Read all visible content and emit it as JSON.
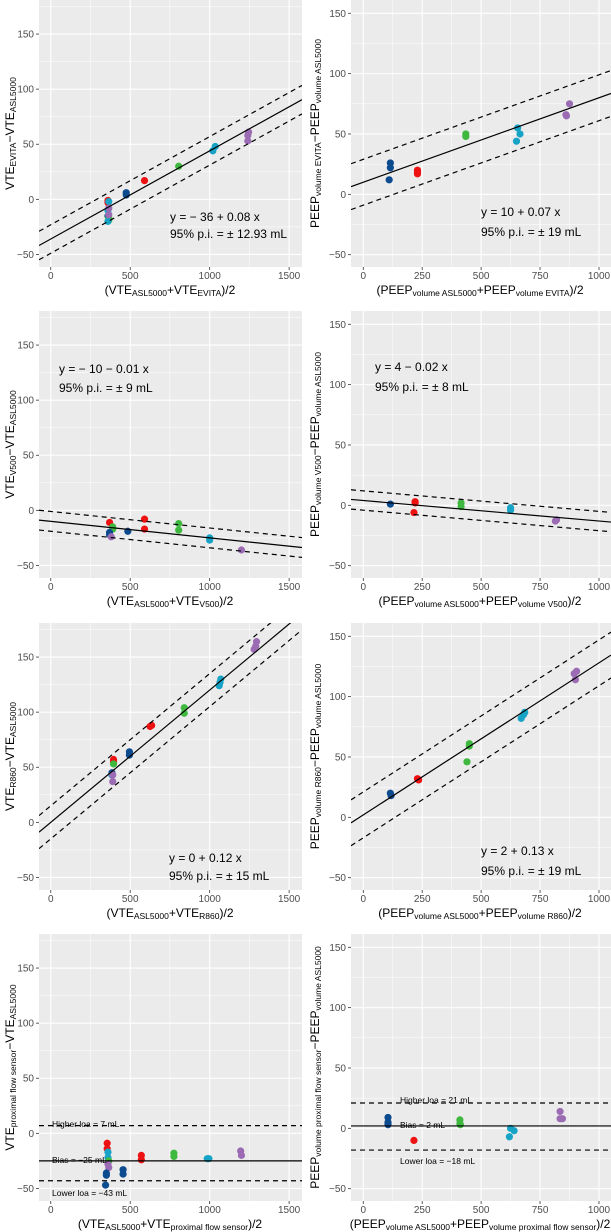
{
  "group_colors": {
    "blue": "#0d4b8f",
    "red": "#ee1111",
    "green": "#3fb83f",
    "cyan": "#17a3c6",
    "purple": "#9b6cb3"
  },
  "chart_data": [
    {
      "type": "scatter",
      "panel": "VTE EVITA",
      "x_title": [
        [
          "(VTE",
          ""
        ],
        [
          "ASL5000",
          "sub"
        ],
        [
          "+VTE",
          ""
        ],
        [
          "EVITA",
          "sub"
        ],
        [
          ")/2",
          ""
        ]
      ],
      "y_title": [
        [
          "VTE",
          ""
        ],
        [
          "EVITA",
          "sub"
        ],
        [
          "−VTE",
          ""
        ],
        [
          "ASL5000",
          "sub"
        ]
      ],
      "xlim": [
        -74,
        1581
      ],
      "ylim": [
        -61.4,
        180.9
      ],
      "xticks": [
        0,
        500,
        1000,
        1500
      ],
      "yticks": [
        -50,
        0,
        50,
        100,
        150
      ],
      "xtick_labels": [
        "0",
        "500",
        "1000",
        "1500"
      ],
      "ytick_labels": [
        "−50",
        "0",
        "50",
        "100",
        "150"
      ],
      "fit": {
        "intercept": -36,
        "slope": 0.08,
        "pi": 12.93
      },
      "annotations": [
        "y = − 36 + 0.08 x",
        "95% p.i. = ± 12.93  mL"
      ],
      "points": [
        [
          360,
          -15,
          "blue"
        ],
        [
          475,
          6,
          "blue"
        ],
        [
          475,
          4,
          "blue"
        ],
        [
          360,
          -1,
          "red"
        ],
        [
          360,
          -3,
          "red"
        ],
        [
          590,
          17,
          "red"
        ],
        [
          365,
          -19,
          "green"
        ],
        [
          365,
          -17,
          "green"
        ],
        [
          805,
          30,
          "green"
        ],
        [
          365,
          -2,
          "cyan"
        ],
        [
          360,
          -20,
          "cyan"
        ],
        [
          360,
          -10,
          "cyan"
        ],
        [
          1020,
          44,
          "cyan"
        ],
        [
          1035,
          48,
          "cyan"
        ],
        [
          365,
          -8,
          "purple"
        ],
        [
          365,
          -14,
          "purple"
        ],
        [
          1240,
          53,
          "purple"
        ],
        [
          1240,
          58,
          "purple"
        ],
        [
          1245,
          61,
          "purple"
        ]
      ]
    },
    {
      "type": "scatter",
      "panel": "PEEP volume EVITA",
      "x_title": [
        [
          "(PEEP",
          ""
        ],
        [
          "volume ASL5000",
          "sub"
        ],
        [
          "+PEEP",
          ""
        ],
        [
          "volume EVITA",
          "sub"
        ],
        [
          ")/2",
          ""
        ]
      ],
      "y_title": [
        [
          "PEEP",
          ""
        ],
        [
          "volume EVITA",
          "sub"
        ],
        [
          "−PEEP",
          ""
        ],
        [
          "volume ASL5000",
          "sub"
        ]
      ],
      "xlim": [
        -52,
        1051
      ],
      "ylim": [
        -60.2,
        161
      ],
      "xticks": [
        0,
        250,
        500,
        750,
        1000
      ],
      "yticks": [
        -50,
        0,
        50,
        100,
        150
      ],
      "xtick_labels": [
        "0",
        "250",
        "500",
        "750",
        "1000"
      ],
      "ytick_labels": [
        "−50",
        "0",
        "50",
        "100",
        "150"
      ],
      "fit": {
        "intercept": 10,
        "slope": 0.07,
        "pi": 19
      },
      "annotations": [
        "y = 10 + 0.07 x",
        "95% p.i. = ± 19  mL"
      ],
      "points": [
        [
          115,
          26,
          "blue"
        ],
        [
          115,
          22,
          "blue"
        ],
        [
          110,
          12,
          "blue"
        ],
        [
          230,
          20,
          "red"
        ],
        [
          230,
          18,
          "red"
        ],
        [
          230,
          17,
          "red"
        ],
        [
          435,
          50,
          "green"
        ],
        [
          435,
          48,
          "green"
        ],
        [
          655,
          55,
          "cyan"
        ],
        [
          665,
          50,
          "cyan"
        ],
        [
          650,
          44,
          "cyan"
        ],
        [
          875,
          75,
          "purple"
        ],
        [
          860,
          66,
          "purple"
        ],
        [
          862,
          65,
          "purple"
        ]
      ]
    },
    {
      "type": "scatter",
      "panel": "VTE V500",
      "x_title": [
        [
          "(VTE",
          ""
        ],
        [
          "ASL5000",
          "sub"
        ],
        [
          "+VTE",
          ""
        ],
        [
          "V500",
          "sub"
        ],
        [
          ")/2",
          ""
        ]
      ],
      "y_title": [
        [
          "VTE",
          ""
        ],
        [
          "V500",
          "sub"
        ],
        [
          "−VTE",
          ""
        ],
        [
          "ASL5000",
          "sub"
        ]
      ],
      "xlim": [
        -74,
        1581
      ],
      "ylim": [
        -61.4,
        180.9
      ],
      "xticks": [
        0,
        500,
        1000,
        1500
      ],
      "yticks": [
        -50,
        0,
        50,
        100,
        150
      ],
      "xtick_labels": [
        "0",
        "500",
        "1000",
        "1500"
      ],
      "ytick_labels": [
        "−50",
        "0",
        "50",
        "100",
        "150"
      ],
      "fit": {
        "intercept": -10,
        "slope": -0.015,
        "pi": 9
      },
      "annotations": [
        "y = − 10 − 0.01 x",
        "95% p.i. = ± 9  mL"
      ],
      "points": [
        [
          370,
          -11,
          "red"
        ],
        [
          590,
          -8,
          "red"
        ],
        [
          590,
          -17,
          "red"
        ],
        [
          390,
          -15,
          "green"
        ],
        [
          390,
          -17,
          "green"
        ],
        [
          805,
          -12,
          "green"
        ],
        [
          805,
          -18,
          "green"
        ],
        [
          370,
          -20,
          "blue"
        ],
        [
          370,
          -22,
          "blue"
        ],
        [
          485,
          -19,
          "blue"
        ],
        [
          1000,
          -25,
          "cyan"
        ],
        [
          1000,
          -27,
          "cyan"
        ],
        [
          380,
          -24,
          "purple"
        ],
        [
          1200,
          -36,
          "purple"
        ]
      ]
    },
    {
      "type": "scatter",
      "panel": "PEEP volume V500",
      "x_title": [
        [
          "(PEEP",
          ""
        ],
        [
          "volume ASL5000",
          "sub"
        ],
        [
          "+PEEP",
          ""
        ],
        [
          "volume V500",
          "sub"
        ],
        [
          ")/2",
          ""
        ]
      ],
      "y_title": [
        [
          "PEEP",
          ""
        ],
        [
          "volume V500",
          "sub"
        ],
        [
          "−PEEP",
          ""
        ],
        [
          "volume ASL5000",
          "sub"
        ]
      ],
      "xlim": [
        -52,
        1051
      ],
      "ylim": [
        -60.2,
        161
      ],
      "xticks": [
        0,
        250,
        500,
        750,
        1000
      ],
      "yticks": [
        -50,
        0,
        50,
        100,
        150
      ],
      "xtick_labels": [
        "0",
        "250",
        "500",
        "750",
        "1000"
      ],
      "ytick_labels": [
        "−50",
        "0",
        "50",
        "100",
        "150"
      ],
      "fit": {
        "intercept": 4,
        "slope": -0.017,
        "pi": 8
      },
      "annotations": [
        "y = 4 − 0.02 x",
        "95% p.i. = ± 8  mL"
      ],
      "points": [
        [
          115,
          1,
          "blue"
        ],
        [
          220,
          3,
          "red"
        ],
        [
          220,
          2,
          "red"
        ],
        [
          215,
          -6,
          "red"
        ],
        [
          415,
          2,
          "green"
        ],
        [
          415,
          -1,
          "green"
        ],
        [
          625,
          -2,
          "cyan"
        ],
        [
          625,
          -4,
          "cyan"
        ],
        [
          820,
          -12,
          "purple"
        ],
        [
          815,
          -13,
          "purple"
        ]
      ]
    },
    {
      "type": "scatter",
      "panel": "VTE R860",
      "x_title": [
        [
          "(VTE",
          ""
        ],
        [
          "ASL5000",
          "sub"
        ],
        [
          "+VTE",
          ""
        ],
        [
          "R860",
          "sub"
        ],
        [
          ")/2",
          ""
        ]
      ],
      "y_title": [
        [
          "VTE",
          ""
        ],
        [
          "R860",
          "sub"
        ],
        [
          "−VTE",
          ""
        ],
        [
          "ASL5000",
          "sub"
        ]
      ],
      "xlim": [
        -74,
        1581
      ],
      "ylim": [
        -61.4,
        180.9
      ],
      "xticks": [
        0,
        500,
        1000,
        1500
      ],
      "yticks": [
        -50,
        0,
        50,
        100,
        150
      ],
      "xtick_labels": [
        "0",
        "500",
        "1000",
        "1500"
      ],
      "ytick_labels": [
        "−50",
        "0",
        "50",
        "100",
        "150"
      ],
      "fit": {
        "intercept": 0,
        "slope": 0.12,
        "pi": 15
      },
      "annotations": [
        "y = 0 + 0.12 x",
        "95% p.i. = ± 15  mL"
      ],
      "points": [
        [
          395,
          57,
          "red"
        ],
        [
          395,
          55,
          "red"
        ],
        [
          625,
          87,
          "red"
        ],
        [
          635,
          88,
          "red"
        ],
        [
          395,
          53,
          "green"
        ],
        [
          840,
          104,
          "green"
        ],
        [
          840,
          99,
          "green"
        ],
        [
          385,
          45,
          "blue"
        ],
        [
          495,
          64,
          "blue"
        ],
        [
          495,
          61,
          "blue"
        ],
        [
          385,
          43,
          "cyan"
        ],
        [
          1060,
          124,
          "cyan"
        ],
        [
          1070,
          130,
          "cyan"
        ],
        [
          1065,
          127,
          "cyan"
        ],
        [
          390,
          43,
          "purple"
        ],
        [
          390,
          37,
          "purple"
        ],
        [
          1280,
          157,
          "purple"
        ],
        [
          1290,
          160,
          "purple"
        ],
        [
          1295,
          164,
          "purple"
        ]
      ]
    },
    {
      "type": "scatter",
      "panel": "PEEP volume R860",
      "x_title": [
        [
          "(PEEP",
          ""
        ],
        [
          "volume ASL5000",
          "sub"
        ],
        [
          "+PEEP",
          ""
        ],
        [
          "volume R860",
          "sub"
        ],
        [
          ")/2",
          ""
        ]
      ],
      "y_title": [
        [
          "PEEP",
          ""
        ],
        [
          "volume R860",
          "sub"
        ],
        [
          "−PEEP",
          ""
        ],
        [
          "volume ASL5000",
          "sub"
        ]
      ],
      "xlim": [
        -52,
        1051
      ],
      "ylim": [
        -60.2,
        161
      ],
      "xticks": [
        0,
        250,
        500,
        750,
        1000
      ],
      "yticks": [
        -50,
        0,
        50,
        100,
        150
      ],
      "xtick_labels": [
        "0",
        "250",
        "500",
        "750",
        "1000"
      ],
      "ytick_labels": [
        "−50",
        "0",
        "50",
        "100",
        "150"
      ],
      "fit": {
        "intercept": 2,
        "slope": 0.126,
        "pi": 19
      },
      "annotations": [
        "y = 2 + 0.13 x",
        "95% p.i. = ± 19  mL"
      ],
      "points": [
        [
          115,
          20,
          "blue"
        ],
        [
          118,
          18,
          "blue"
        ],
        [
          230,
          32,
          "red"
        ],
        [
          235,
          31,
          "red"
        ],
        [
          450,
          61,
          "green"
        ],
        [
          450,
          59,
          "green"
        ],
        [
          440,
          46,
          "green"
        ],
        [
          670,
          82,
          "cyan"
        ],
        [
          680,
          85,
          "cyan"
        ],
        [
          685,
          87,
          "cyan"
        ],
        [
          895,
          119,
          "purple"
        ],
        [
          905,
          121,
          "purple"
        ],
        [
          900,
          114,
          "purple"
        ]
      ]
    },
    {
      "type": "scatter",
      "panel": "VTE proximal flow sensor",
      "x_title": [
        [
          "(VTE",
          ""
        ],
        [
          "ASL5000",
          "sub"
        ],
        [
          "+VTE",
          ""
        ],
        [
          "proximal flow sensor",
          "sub"
        ],
        [
          ")/2",
          ""
        ]
      ],
      "y_title": [
        [
          "VTE",
          ""
        ],
        [
          "proximal flow sensor",
          "sub"
        ],
        [
          "−VTE",
          ""
        ],
        [
          "ASL5000",
          "sub"
        ]
      ],
      "xlim": [
        -74,
        1581
      ],
      "ylim": [
        -61.4,
        180.9
      ],
      "xticks": [
        0,
        500,
        1000,
        1500
      ],
      "yticks": [
        -50,
        0,
        50,
        100,
        150
      ],
      "xtick_labels": [
        "0",
        "500",
        "1000",
        "1500"
      ],
      "ytick_labels": [
        "−50",
        "0",
        "50",
        "100",
        "150"
      ],
      "bias": {
        "value": -25,
        "upper": 7,
        "lower": -43
      },
      "annotations": [
        "Higher loa = 7 mL",
        "Bias = −25 mL",
        "Lower loa = −43 mL"
      ],
      "points": [
        [
          355,
          -9,
          "red"
        ],
        [
          355,
          -14,
          "red"
        ],
        [
          570,
          -20,
          "red"
        ],
        [
          570,
          -24,
          "red"
        ],
        [
          360,
          -17,
          "cyan"
        ],
        [
          360,
          -22,
          "cyan"
        ],
        [
          985,
          -23,
          "cyan"
        ],
        [
          995,
          -23,
          "cyan"
        ],
        [
          365,
          -25,
          "green"
        ],
        [
          775,
          -18,
          "green"
        ],
        [
          775,
          -21,
          "green"
        ],
        [
          360,
          -28,
          "purple"
        ],
        [
          365,
          -31,
          "purple"
        ],
        [
          1195,
          -16,
          "purple"
        ],
        [
          1200,
          -20,
          "purple"
        ],
        [
          350,
          -36,
          "blue"
        ],
        [
          350,
          -38,
          "blue"
        ],
        [
          345,
          -47,
          "blue"
        ],
        [
          455,
          -33,
          "blue"
        ],
        [
          455,
          -37,
          "blue"
        ]
      ]
    },
    {
      "type": "scatter",
      "panel": "PEEP volume proximal flow sensor",
      "x_title": [
        [
          "(PEEP",
          ""
        ],
        [
          "volume ASL5000",
          "sub"
        ],
        [
          "+PEEP",
          ""
        ],
        [
          "volume proximal flow sensor",
          "sub"
        ],
        [
          ")/2",
          ""
        ]
      ],
      "y_title": [
        [
          "PEEP",
          ""
        ],
        [
          "volume proximal flow sensor",
          "sub"
        ],
        [
          "−PEEP",
          ""
        ],
        [
          "volume ASL5000",
          "sub"
        ]
      ],
      "xlim": [
        -52,
        1051
      ],
      "ylim": [
        -60.2,
        161
      ],
      "xticks": [
        0,
        250,
        500,
        750,
        1000
      ],
      "yticks": [
        -50,
        0,
        50,
        100,
        150
      ],
      "xtick_labels": [
        "0",
        "250",
        "500",
        "750",
        "1000"
      ],
      "ytick_labels": [
        "−50",
        "0",
        "50",
        "100",
        "150"
      ],
      "bias": {
        "value": 2,
        "upper": 21,
        "lower": -18
      },
      "annotations": [
        "Higher loa = 21 mL",
        "Bias = 2 mL",
        "Lower loa = −18 mL"
      ],
      "points": [
        [
          105,
          9,
          "blue"
        ],
        [
          105,
          5,
          "blue"
        ],
        [
          105,
          3,
          "blue"
        ],
        [
          215,
          -10,
          "red"
        ],
        [
          410,
          7,
          "green"
        ],
        [
          410,
          4,
          "green"
        ],
        [
          412,
          3,
          "green"
        ],
        [
          625,
          0,
          "cyan"
        ],
        [
          640,
          -2,
          "cyan"
        ],
        [
          620,
          -7,
          "cyan"
        ],
        [
          835,
          14,
          "purple"
        ],
        [
          835,
          8,
          "purple"
        ],
        [
          845,
          8,
          "purple"
        ]
      ]
    }
  ]
}
